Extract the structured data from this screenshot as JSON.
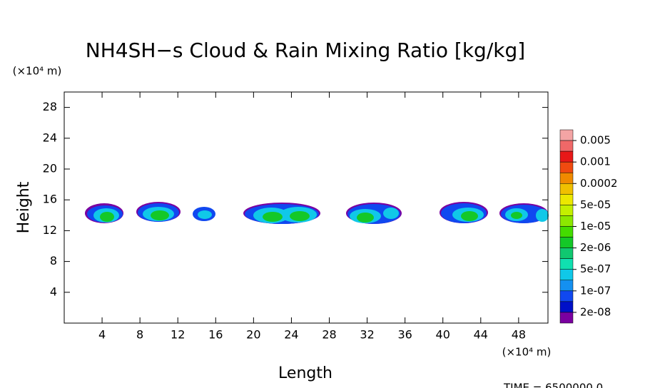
{
  "chart_data": {
    "type": "contour",
    "title": "NH4SH−s Cloud & Rain Mixing Ratio [kg/kg]",
    "x_label": "Length",
    "y_label": "Height",
    "x_unit": "(×10⁴ m)",
    "y_unit": "(×10⁴ m)",
    "time_label": "TIME = 6500000.0",
    "xlim": [
      0,
      51.1
    ],
    "ylim": [
      0,
      30
    ],
    "xticks": [
      4,
      8,
      12,
      16,
      20,
      24,
      28,
      32,
      36,
      40,
      44,
      48
    ],
    "yticks": [
      4,
      8,
      12,
      16,
      20,
      24,
      28
    ],
    "colorbar": {
      "colors": [
        "#f4a4a4",
        "#f06868",
        "#e81818",
        "#f04a10",
        "#f08a00",
        "#f0c000",
        "#ece800",
        "#c4f000",
        "#8ce800",
        "#44dc00",
        "#14c828",
        "#10c870",
        "#10e0b0",
        "#10c8e8",
        "#1490f0",
        "#1048f0",
        "#0010c8",
        "#7a00a0"
      ],
      "ticks": [
        {
          "value": 0.005,
          "label": "0.005"
        },
        {
          "value": 0.001,
          "label": "0.001"
        },
        {
          "value": 0.0002,
          "label": "0.0002"
        },
        {
          "value": 5e-05,
          "label": "5e-05"
        },
        {
          "value": 1e-05,
          "label": "1e-05"
        },
        {
          "value": 2e-06,
          "label": "2e-06"
        },
        {
          "value": 5e-07,
          "label": "5e-07"
        },
        {
          "value": 1e-07,
          "label": "1e-07"
        },
        {
          "value": 2e-08,
          "label": "2e-08"
        }
      ]
    }
  }
}
